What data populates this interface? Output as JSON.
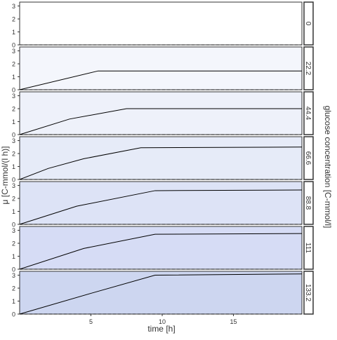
{
  "chart_data": {
    "type": "line",
    "xlabel": "time [h]",
    "ylabel": "μ [C-mmol/(l h)]",
    "strip_title": "glucose concentration [C-mmol/l]",
    "xlim": [
      0,
      19.8
    ],
    "ylim": [
      0,
      3.3
    ],
    "x_ticks": [
      5,
      10,
      15
    ],
    "y_ticks": [
      0,
      1,
      2,
      3
    ],
    "grid": false,
    "reference_line_y": 0,
    "panel_colors": [
      "#ffffff",
      "#f4f6fc",
      "#eef1fa",
      "#e6ebf8",
      "#dde3f6",
      "#d6dcf5",
      "#cdd6f0"
    ],
    "line_color": "#000000",
    "panels": [
      {
        "label": "0",
        "points": []
      },
      {
        "label": "22.2",
        "points": [
          [
            0,
            0
          ],
          [
            5.5,
            1.45
          ],
          [
            19.8,
            1.45
          ]
        ]
      },
      {
        "label": "44.4",
        "points": [
          [
            0,
            0
          ],
          [
            3.5,
            1.2
          ],
          [
            7.5,
            2.0
          ],
          [
            19.8,
            2.0
          ]
        ]
      },
      {
        "label": "66.6",
        "points": [
          [
            0,
            0
          ],
          [
            2,
            0.85
          ],
          [
            4.5,
            1.6
          ],
          [
            8.5,
            2.45
          ],
          [
            19.8,
            2.5
          ]
        ]
      },
      {
        "label": "88.8",
        "points": [
          [
            0,
            0
          ],
          [
            4,
            1.4
          ],
          [
            9.5,
            2.6
          ],
          [
            19.8,
            2.65
          ]
        ]
      },
      {
        "label": "111",
        "points": [
          [
            0,
            0
          ],
          [
            4.5,
            1.6
          ],
          [
            9.5,
            2.7
          ],
          [
            19.8,
            2.75
          ]
        ]
      },
      {
        "label": "133.2",
        "points": [
          [
            0,
            0
          ],
          [
            5,
            1.6
          ],
          [
            9.5,
            3.0
          ],
          [
            19.8,
            3.1
          ]
        ]
      }
    ]
  }
}
